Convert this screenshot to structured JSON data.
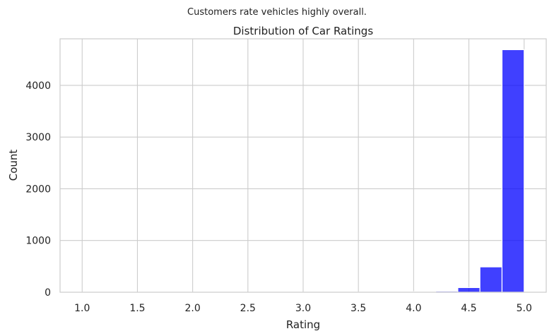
{
  "chart_data": {
    "type": "bar",
    "suptitle": "Customers rate vehicles highly overall.",
    "title": "Distribution of Car Ratings",
    "xlabel": "Rating",
    "ylabel": "Count",
    "xlim": [
      0.8,
      5.2
    ],
    "ylim": [
      0,
      4900
    ],
    "xticks": [
      "1.0",
      "1.5",
      "2.0",
      "2.5",
      "3.0",
      "3.5",
      "4.0",
      "4.5",
      "5.0"
    ],
    "yticks": [
      "0",
      "1000",
      "2000",
      "3000",
      "4000"
    ],
    "grid": true,
    "bar_color": "#0000ff",
    "bins": [
      {
        "x0": 1.0,
        "x1": 1.2,
        "count": 1
      },
      {
        "x0": 1.2,
        "x1": 1.4,
        "count": 0
      },
      {
        "x0": 1.4,
        "x1": 1.6,
        "count": 0
      },
      {
        "x0": 1.6,
        "x1": 1.8,
        "count": 0
      },
      {
        "x0": 1.8,
        "x1": 2.0,
        "count": 0
      },
      {
        "x0": 2.0,
        "x1": 2.2,
        "count": 1
      },
      {
        "x0": 2.2,
        "x1": 2.4,
        "count": 0
      },
      {
        "x0": 2.4,
        "x1": 2.6,
        "count": 0
      },
      {
        "x0": 2.6,
        "x1": 2.8,
        "count": 0
      },
      {
        "x0": 2.8,
        "x1": 3.0,
        "count": 0
      },
      {
        "x0": 3.0,
        "x1": 3.2,
        "count": 2
      },
      {
        "x0": 3.2,
        "x1": 3.4,
        "count": 1
      },
      {
        "x0": 3.4,
        "x1": 3.6,
        "count": 2
      },
      {
        "x0": 3.6,
        "x1": 3.8,
        "count": 3
      },
      {
        "x0": 3.8,
        "x1": 4.0,
        "count": 5
      },
      {
        "x0": 4.0,
        "x1": 4.2,
        "count": 12
      },
      {
        "x0": 4.2,
        "x1": 4.4,
        "count": 20
      },
      {
        "x0": 4.4,
        "x1": 4.6,
        "count": 90
      },
      {
        "x0": 4.6,
        "x1": 4.8,
        "count": 490
      },
      {
        "x0": 4.8,
        "x1": 5.0,
        "count": 4690
      }
    ]
  }
}
